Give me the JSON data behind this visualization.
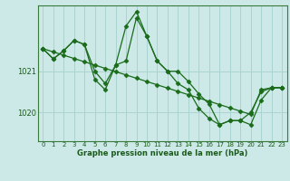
{
  "title": "Graphe pression niveau de la mer (hPa)",
  "bg_color": "#cce9e7",
  "grid_color": "#aad4d0",
  "line_color": "#1a6b1a",
  "marker_color": "#1a6b1a",
  "xlim": [
    -0.5,
    23.5
  ],
  "ylim": [
    1019.3,
    1022.6
  ],
  "yticks": [
    1020,
    1021
  ],
  "xticks": [
    0,
    1,
    2,
    3,
    4,
    5,
    6,
    7,
    8,
    9,
    10,
    11,
    12,
    13,
    14,
    15,
    16,
    17,
    18,
    19,
    20,
    21,
    22,
    23
  ],
  "series_trend": [
    1021.55,
    1021.47,
    1021.39,
    1021.31,
    1021.23,
    1021.15,
    1021.07,
    1020.99,
    1020.91,
    1020.83,
    1020.75,
    1020.67,
    1020.59,
    1020.51,
    1020.43,
    1020.35,
    1020.27,
    1020.19,
    1020.11,
    1020.03,
    1019.95,
    1020.55,
    1020.6,
    1020.6
  ],
  "series_a": [
    1021.55,
    1021.3,
    1021.5,
    1021.75,
    1021.65,
    1021.0,
    1020.7,
    1021.15,
    1021.25,
    1022.3,
    1021.85,
    1021.25,
    1021.0,
    1020.7,
    1020.55,
    1020.1,
    1019.85,
    1019.7,
    1019.8,
    1019.8,
    1020.0,
    1020.5,
    1020.6,
    1020.6
  ],
  "series_b": [
    1021.55,
    1021.3,
    1021.5,
    1021.75,
    1021.65,
    1020.8,
    1020.55,
    1021.15,
    1022.1,
    1022.45,
    1021.85,
    1021.25,
    1021.0,
    1021.0,
    1020.75,
    1020.45,
    1020.2,
    1019.7,
    1019.8,
    1019.8,
    1019.7,
    1020.3,
    1020.6,
    1020.6
  ]
}
